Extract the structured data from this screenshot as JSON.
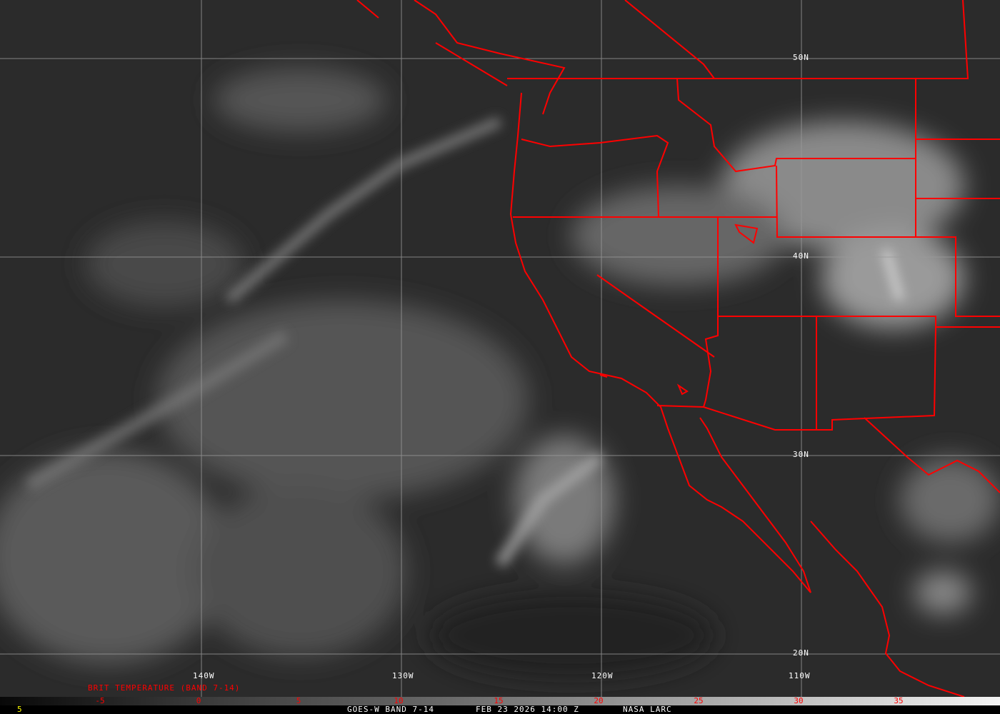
{
  "map": {
    "colors": {
      "background": "#2c2c2c",
      "boundaries": "#ff0000",
      "grid": "#9a9a9a",
      "labels": "#ffffff",
      "scale_ticks": "#ff0000",
      "corner_value": "#ffff00"
    },
    "longitude_labels": [
      "140W",
      "130W",
      "120W",
      "110W"
    ],
    "latitude_labels": [
      "50N",
      "40N",
      "30N",
      "20N"
    ],
    "scale_title": "BRIT TEMPERATURE (BAND 7-14)",
    "scale_ticks": [
      "-5",
      "0",
      "5",
      "10",
      "15",
      "20",
      "25",
      "30",
      "35"
    ],
    "corner_value": "5",
    "footer": {
      "satellite": "GOES-W BAND 7-14",
      "datetime": "FEB 23 2026 14:00 Z",
      "source": "NASA LARC"
    }
  }
}
